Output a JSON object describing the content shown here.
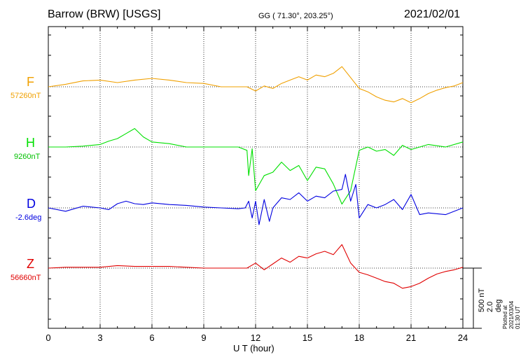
{
  "header": {
    "station": "Barrow (BRW)  [USGS]",
    "coords": "GG ( 71.30°, 203.25°)",
    "date": "2021/02/01"
  },
  "footer": {
    "xlabel": "U T (hour)",
    "scale_nt": "500 nT",
    "scale_deg": "2.0 deg",
    "plotted": "Plotted at 2021/03/04 01:30 UT"
  },
  "components": [
    {
      "name": "F",
      "baseline": "57260nT",
      "color": "#f0a000"
    },
    {
      "name": "H",
      "baseline": "9260nT",
      "color": "#00e000"
    },
    {
      "name": "D",
      "baseline": "-2.6deg",
      "color": "#0000e0"
    },
    {
      "name": "Z",
      "baseline": "56660nT",
      "color": "#e00000"
    }
  ],
  "chart_data": {
    "type": "line",
    "title": "Barrow (BRW)  [USGS]",
    "xlabel": "U T (hour)",
    "ylabel": "",
    "xlim": [
      0,
      24
    ],
    "xticks": [
      0,
      3,
      6,
      9,
      12,
      15,
      18,
      21,
      24
    ],
    "xtick_labels": [
      "0",
      "3",
      "6",
      "9",
      "12",
      "15",
      "18",
      "21",
      "24"
    ],
    "grid": true,
    "series": [
      {
        "name": "F",
        "baseline_label": "57260nT",
        "color": "#f0a000",
        "x": [
          0,
          1,
          2,
          3,
          4,
          5,
          6,
          7,
          8,
          9,
          10,
          11,
          11.5,
          12,
          12.5,
          13,
          13.5,
          14,
          14.5,
          15,
          15.5,
          16,
          16.5,
          17,
          17.5,
          18,
          18.5,
          19,
          19.5,
          20,
          20.5,
          21,
          21.5,
          22,
          22.5,
          23,
          23.5,
          24
        ],
        "values": [
          0,
          15,
          35,
          40,
          25,
          40,
          50,
          40,
          25,
          20,
          0,
          0,
          0,
          -25,
          5,
          -10,
          20,
          40,
          60,
          40,
          70,
          60,
          80,
          120,
          55,
          -10,
          -30,
          -60,
          -80,
          -90,
          -70,
          -95,
          -70,
          -40,
          -20,
          -5,
          5,
          25
        ]
      },
      {
        "name": "H",
        "baseline_label": "9260nT",
        "color": "#00e000",
        "x": [
          0,
          1,
          2,
          3,
          3.5,
          4,
          4.5,
          5,
          5.5,
          6,
          7,
          8,
          9,
          10,
          11,
          11.5,
          11.6,
          11.8,
          12,
          12.5,
          13,
          13.5,
          14,
          14.5,
          15,
          15.5,
          16,
          16.5,
          17,
          17.5,
          18,
          18.5,
          19,
          19.5,
          20,
          20.5,
          21,
          22,
          23,
          24
        ],
        "values": [
          0,
          0,
          5,
          15,
          35,
          50,
          80,
          110,
          60,
          30,
          20,
          0,
          0,
          0,
          0,
          -20,
          -170,
          -10,
          -260,
          -170,
          -150,
          -90,
          -140,
          -110,
          -200,
          -120,
          -130,
          -220,
          -340,
          -260,
          -20,
          0,
          -25,
          -15,
          -50,
          10,
          -15,
          15,
          0,
          30
        ]
      },
      {
        "name": "D",
        "baseline_label": "-2.6deg",
        "color": "#0000e0",
        "x": [
          0,
          1,
          2,
          3,
          3.5,
          4,
          4.5,
          5,
          5.5,
          6,
          7,
          8,
          9,
          10,
          11,
          11.4,
          11.6,
          11.8,
          12,
          12.2,
          12.5,
          12.8,
          13,
          13.5,
          14,
          14.5,
          15,
          15.5,
          16,
          16.5,
          17,
          17.2,
          17.5,
          17.8,
          18,
          18.5,
          19,
          19.5,
          20,
          20.5,
          21,
          21.5,
          22,
          23,
          24
        ],
        "values": [
          0,
          -20,
          10,
          0,
          -10,
          25,
          40,
          25,
          20,
          30,
          20,
          15,
          5,
          0,
          -5,
          0,
          40,
          -60,
          40,
          -100,
          50,
          -80,
          0,
          60,
          50,
          90,
          40,
          70,
          60,
          100,
          110,
          200,
          40,
          140,
          -60,
          20,
          0,
          20,
          50,
          -10,
          80,
          -40,
          -30,
          -40,
          0
        ]
      },
      {
        "name": "Z",
        "baseline_label": "56660nT",
        "color": "#e00000",
        "x": [
          0,
          1,
          2,
          3,
          4,
          5,
          6,
          7,
          8,
          9,
          10,
          11,
          11.5,
          12,
          12.5,
          13,
          13.5,
          14,
          14.5,
          15,
          15.5,
          16,
          16.5,
          17,
          17.5,
          18,
          18.5,
          19,
          19.5,
          20,
          20.5,
          21,
          21.5,
          22,
          22.5,
          23,
          23.5,
          24
        ],
        "values": [
          0,
          5,
          5,
          5,
          15,
          10,
          10,
          10,
          5,
          0,
          0,
          0,
          0,
          30,
          -10,
          25,
          60,
          35,
          70,
          60,
          85,
          100,
          80,
          140,
          30,
          -25,
          -40,
          -60,
          -80,
          -90,
          -120,
          -110,
          -90,
          -60,
          -35,
          -20,
          -10,
          5
        ]
      }
    ]
  }
}
